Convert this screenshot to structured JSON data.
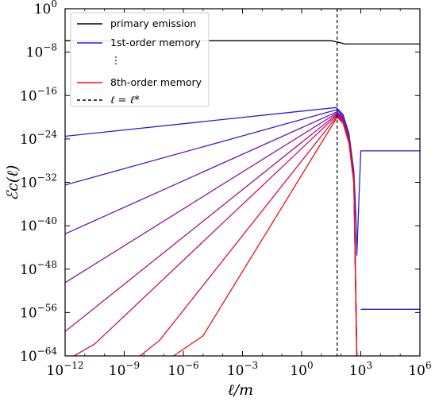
{
  "chart_data": {
    "type": "line",
    "xlabel": "ℓ/m",
    "ylabel": "ℰc(ℓ)",
    "x_scale": "log",
    "y_scale": "log",
    "xlim": [
      1e-12,
      1000000.0
    ],
    "ylim": [
      1e-64,
      1
    ],
    "x_ticks": [
      {
        "mant": "10",
        "exp": "−12",
        "value": -12
      },
      {
        "mant": "10",
        "exp": "−9",
        "value": -9
      },
      {
        "mant": "10",
        "exp": "−6",
        "value": -6
      },
      {
        "mant": "10",
        "exp": "−3",
        "value": -3
      },
      {
        "mant": "10",
        "exp": "0",
        "value": 0
      },
      {
        "mant": "10",
        "exp": "3",
        "value": 3
      },
      {
        "mant": "10",
        "exp": "6",
        "value": 6
      }
    ],
    "y_ticks": [
      {
        "mant": "10",
        "exp": "0",
        "value": 0
      },
      {
        "mant": "10",
        "exp": "−8",
        "value": -8
      },
      {
        "mant": "10",
        "exp": "−16",
        "value": -16
      },
      {
        "mant": "10",
        "exp": "−24",
        "value": -24
      },
      {
        "mant": "10",
        "exp": "−32",
        "value": -32
      },
      {
        "mant": "10",
        "exp": "−40",
        "value": -40
      },
      {
        "mant": "10",
        "exp": "−48",
        "value": -48
      },
      {
        "mant": "10",
        "exp": "−56",
        "value": -56
      },
      {
        "mant": "10",
        "exp": "−64",
        "value": -64
      }
    ],
    "ell_star_log10": 1.8,
    "legend": {
      "placement": "upper-left",
      "entries": [
        {
          "label": "primary emission",
          "color": "#000000",
          "style": "solid"
        },
        {
          "label": "1st-order memory",
          "color": "#2a1bd6",
          "style": "solid"
        },
        {
          "label": "⋮",
          "color": "none",
          "style": "none"
        },
        {
          "label": "8th-order memory",
          "color": "#f01010",
          "style": "solid"
        },
        {
          "label": "ℓ = ℓ*",
          "color": "#000000",
          "style": "dashed"
        }
      ]
    },
    "primary_emission": {
      "name": "primary emission",
      "color": "#000000",
      "points": [
        [
          -12,
          -5.9
        ],
        [
          1.5,
          -5.9
        ],
        [
          2.0,
          -6.3
        ],
        [
          2.2,
          -6.5
        ],
        [
          6,
          -6.5
        ]
      ]
    },
    "memory_series": [
      {
        "order": 1,
        "color": "#2a1bd6",
        "points": [
          [
            -12,
            -23.5
          ],
          [
            1.75,
            -18.2
          ],
          [
            2.1,
            -19.5
          ],
          [
            2.4,
            -23
          ],
          [
            2.65,
            -30
          ],
          [
            2.75,
            -38
          ],
          [
            2.8,
            -45.5
          ],
          [
            3.0,
            -26.2
          ],
          [
            6,
            -26.2
          ]
        ]
      },
      {
        "order": 2,
        "color": "#4a19c6",
        "points": [
          [
            -12,
            -32.5
          ],
          [
            1.8,
            -18.6
          ],
          [
            2.1,
            -19.8
          ],
          [
            2.4,
            -23.5
          ],
          [
            2.65,
            -30.5
          ],
          [
            2.8,
            -64
          ]
        ]
      },
      {
        "order": 3,
        "color": "#6a17b2",
        "points": [
          [
            -12,
            -41.5
          ],
          [
            1.8,
            -19.0
          ],
          [
            2.1,
            -20.1
          ],
          [
            2.4,
            -23.8
          ],
          [
            2.65,
            -31
          ],
          [
            2.8,
            -64
          ]
        ]
      },
      {
        "order": 4,
        "color": "#8a149a",
        "points": [
          [
            -12,
            -50.5
          ],
          [
            1.8,
            -19.2
          ],
          [
            2.1,
            -20.3
          ],
          [
            2.4,
            -24
          ],
          [
            2.65,
            -31.3
          ],
          [
            2.8,
            -64
          ]
        ]
      },
      {
        "order": 5,
        "color": "#a81284",
        "points": [
          [
            -12,
            -59.5
          ],
          [
            1.8,
            -19.4
          ],
          [
            2.1,
            -20.5
          ],
          [
            2.4,
            -24.2
          ],
          [
            2.65,
            -31.6
          ],
          [
            2.8,
            -64
          ]
        ]
      },
      {
        "order": 6,
        "color": "#c5106a",
        "points": [
          [
            -11.55,
            -64
          ],
          [
            -10.5,
            -61.8
          ],
          [
            1.8,
            -19.6
          ],
          [
            2.1,
            -20.7
          ],
          [
            2.4,
            -24.4
          ],
          [
            2.65,
            -31.8
          ],
          [
            2.8,
            -64
          ]
        ]
      },
      {
        "order": 7,
        "color": "#dc0e44",
        "points": [
          [
            -8.2,
            -64
          ],
          [
            -7.2,
            -61.1
          ],
          [
            1.8,
            -19.8
          ],
          [
            2.1,
            -20.9
          ],
          [
            2.4,
            -24.6
          ],
          [
            2.65,
            -32
          ],
          [
            2.8,
            -64
          ]
        ]
      },
      {
        "order": 8,
        "color": "#f01010",
        "points": [
          [
            -6.5,
            -64
          ],
          [
            -5.0,
            -60.3
          ],
          [
            1.8,
            -20.0
          ],
          [
            2.1,
            -21.1
          ],
          [
            2.4,
            -24.8
          ],
          [
            2.65,
            -32.2
          ],
          [
            2.8,
            -64
          ]
        ]
      },
      {
        "order": 1,
        "color": "#2a1bd6",
        "points": [
          [
            3.0,
            -55.4
          ],
          [
            6,
            -55.4
          ]
        ]
      }
    ]
  }
}
